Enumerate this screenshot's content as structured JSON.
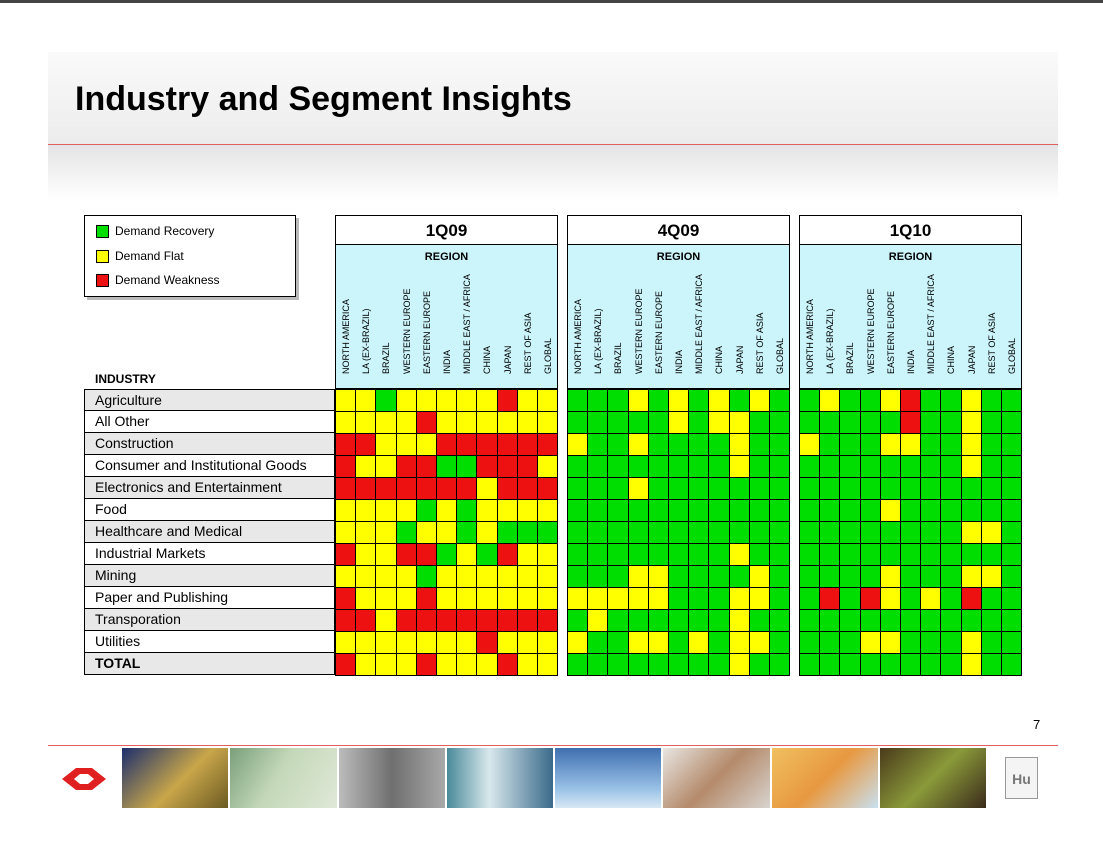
{
  "title": "Industry and Segment Insights",
  "legend": [
    {
      "label": "Demand Recovery",
      "color": "#00dd00"
    },
    {
      "label": "Demand Flat",
      "color": "#ffff00"
    },
    {
      "label": "Demand Weakness",
      "color": "#ee1111"
    }
  ],
  "industry_header": "INDUSTRY",
  "page_number": "7",
  "chart_data": {
    "type": "heatmap",
    "region_header": "REGION",
    "regions": [
      "NORTH AMERICA",
      "LA (EX-BRAZIL)",
      "BRAZIL",
      "WESTERN EUROPE",
      "EASTERN EUROPE",
      "INDIA",
      "MIDDLE EAST / AFRICA",
      "CHINA",
      "JAPAN",
      "REST OF ASIA",
      "GLOBAL"
    ],
    "industries": [
      "Agriculture",
      "All Other",
      "Construction",
      "Consumer and Institutional Goods",
      "Electronics and Entertainment",
      "Food",
      "Healthcare and Medical",
      "Industrial Markets",
      "Mining",
      "Paper and Publishing",
      "Transporation",
      "Utilities",
      "TOTAL"
    ],
    "color_key": {
      "G": "#00dd00",
      "Y": "#ffff00",
      "R": "#ee1111"
    },
    "periods": [
      {
        "name": "1Q09",
        "rows": [
          "YYGYYYYYRYY",
          "YYYYRYYYYYY",
          "RRYYYRRRRRR",
          "RYYRRGGRRRY",
          "RRRRRRRYRRR",
          "YYYYGYGYYYY",
          "YYYGYYGYGGG",
          "RYYRRGYGRYY",
          "YYYYGYYYYYY",
          "RYYYRYYYYYY",
          "RRYRRRRRRRR",
          "YYYYYYYRYYY",
          "RYYYRYYYRYY"
        ]
      },
      {
        "name": "4Q09",
        "rows": [
          "GGGYGYGYGYG",
          "GGGGGYGYYGG",
          "YGGYGGGGYGG",
          "GGGGGGGGYGG",
          "GGGYGGGGGGG",
          "GGGGGGGGGGG",
          "GGGGGGGGGGG",
          "GGGGGGGGYGG",
          "GGGYYGGGGYG",
          "YYYYYGGGYYG",
          "GYGGGGGGYGG",
          "YGGYYGYGYYG",
          "GGGGGGGGYGG"
        ]
      },
      {
        "name": "1Q10",
        "rows": [
          "GYGGYRGGYGG",
          "GGGGGRGGYGG",
          "YGGGYYGGYGG",
          "GGGGGGGGYGG",
          "GGGGGGGGGGG",
          "GGGGYGGGGGG",
          "GGGGGGGGYYG",
          "GGGGGGGGGGG",
          "GGGGYGGGYYG",
          "GRGRYGYGRGG",
          "GGGGGGGGGGG",
          "GGGYYGGGYGG",
          "GGGGGGGGYGG"
        ]
      }
    ]
  }
}
